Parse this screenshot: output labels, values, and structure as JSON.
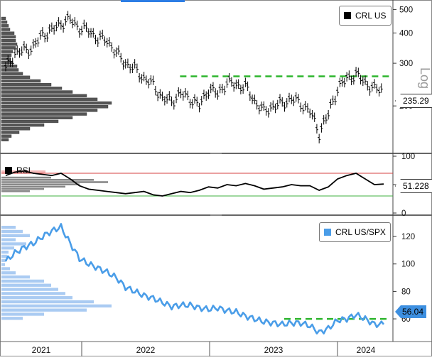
{
  "chart_data": [
    {
      "type": "ohlc",
      "series": [
        {
          "name": "CRL US"
        }
      ],
      "y_scale": "log",
      "scale_label": "Log",
      "ylim": [
        130,
        540
      ],
      "yticks": [
        200,
        300,
        400,
        500
      ],
      "last_value": "235.29",
      "resistance_level": 265,
      "x": [
        "2021-01",
        "2021-02",
        "2021-03",
        "2021-04",
        "2021-05",
        "2021-06",
        "2021-07",
        "2021-08",
        "2021-09",
        "2021-10",
        "2021-11",
        "2021-12",
        "2022-01",
        "2022-02",
        "2022-03",
        "2022-04",
        "2022-05",
        "2022-06",
        "2022-07",
        "2022-08",
        "2022-09",
        "2022-10",
        "2022-11",
        "2022-12",
        "2023-01",
        "2023-02",
        "2023-03",
        "2023-04",
        "2023-05",
        "2023-06",
        "2023-07",
        "2023-08",
        "2023-09",
        "2023-10",
        "2023-11",
        "2023-12",
        "2024-01",
        "2024-02",
        "2024-03",
        "2024-04",
        "2024-05",
        "2024-06"
      ],
      "close": [
        285,
        330,
        340,
        350,
        395,
        410,
        440,
        455,
        420,
        410,
        380,
        375,
        330,
        300,
        285,
        260,
        245,
        215,
        210,
        225,
        215,
        200,
        235,
        225,
        250,
        245,
        240,
        210,
        190,
        200,
        205,
        215,
        205,
        190,
        155,
        185,
        235,
        260,
        270,
        250,
        235,
        235
      ]
    },
    {
      "type": "line",
      "series": [
        {
          "name": "RSI"
        }
      ],
      "ylim": [
        0,
        100
      ],
      "yticks": [
        0,
        50,
        100
      ],
      "upper_band": 70,
      "lower_band": 30,
      "last_value": "51.228",
      "values": [
        66,
        72,
        74,
        70,
        68,
        66,
        70,
        60,
        48,
        42,
        40,
        38,
        36,
        34,
        36,
        38,
        32,
        30,
        34,
        38,
        36,
        40,
        46,
        44,
        50,
        48,
        52,
        48,
        42,
        44,
        46,
        50,
        48,
        48,
        40,
        46,
        60,
        66,
        70,
        60,
        50,
        51
      ]
    },
    {
      "type": "line",
      "series": [
        {
          "name": "CRL US/SPX"
        }
      ],
      "ylim": [
        44,
        134
      ],
      "yticks": [
        60,
        80,
        100,
        120
      ],
      "last_value": "56.04",
      "resistance_level": 60,
      "values": [
        102,
        108,
        112,
        115,
        120,
        124,
        127,
        115,
        104,
        100,
        97,
        94,
        90,
        83,
        80,
        77,
        75,
        72,
        69,
        70,
        70,
        68,
        67,
        68,
        66,
        65,
        62,
        60,
        58,
        57,
        56,
        57,
        57,
        55,
        50,
        53,
        59,
        60,
        63,
        60,
        56,
        56
      ]
    }
  ],
  "x_labels": [
    "2021",
    "2022",
    "2023",
    "2024"
  ],
  "legends": {
    "price": "CRL US",
    "rsi": "RSI",
    "ratio": "CRL US/SPX"
  },
  "colors": {
    "price": "#000000",
    "ratio": "#4a9de8",
    "ratio_tag": "#3d8fe0",
    "resistance": "#2db52d",
    "rsi_upper": "#d64040",
    "rsi_lower": "#3fb03f",
    "rsi_fill": "#f4b9b9",
    "volume_profile": "#555555",
    "ratio_profile": "#aacbf2",
    "accent_tab": "#2c7de5"
  }
}
